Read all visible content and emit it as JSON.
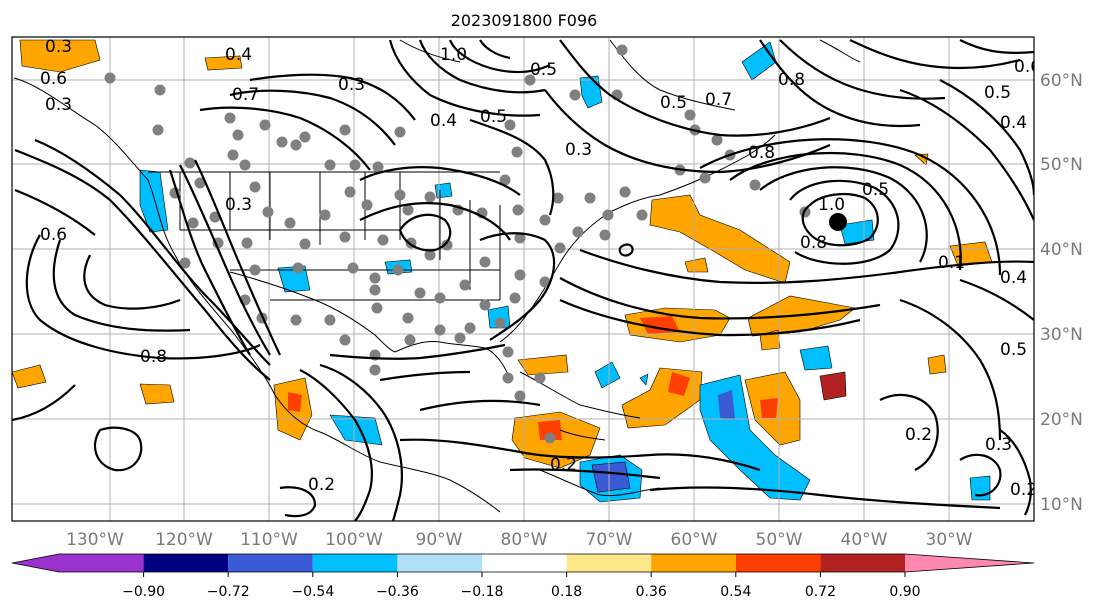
{
  "title": "2023091800 F096",
  "lon_labels": [
    "130°W",
    "120°W",
    "110°W",
    "100°W",
    "90°W",
    "80°W",
    "70°W",
    "60°W",
    "50°W",
    "40°W",
    "30°W"
  ],
  "lat_labels": [
    "60°N",
    "50°N",
    "40°N",
    "30°N",
    "20°N",
    "10°N"
  ],
  "colorbar": {
    "tick_labels": [
      "−0.90",
      "−0.72",
      "−0.54",
      "−0.36",
      "−0.18",
      "0.18",
      "0.36",
      "0.54",
      "0.72",
      "0.90"
    ],
    "colors": [
      "#9933cc",
      "#000080",
      "#3b5bd6",
      "#00bfff",
      "#b0e0f8",
      "#ffffff",
      "#ffe88a",
      "#ffa500",
      "#ff3f00",
      "#b22222",
      "#ff88b0"
    ]
  },
  "contour_labels": [
    "0.3",
    "0.4",
    "0.7",
    "0.3",
    "1.0",
    "0.5",
    "0.4",
    "0.3",
    "0.5",
    "0.7",
    "0.8",
    "1.0",
    "0.8",
    "0.6",
    "0.5",
    "0.4",
    "0.5",
    "0.6",
    "0.8",
    "0.6",
    "0.4",
    "0.5",
    "0.2",
    "0.3",
    "0.2",
    "0.2",
    "0.2",
    "0.3",
    "0.3",
    "0.5",
    "0.8",
    "0.1"
  ]
}
